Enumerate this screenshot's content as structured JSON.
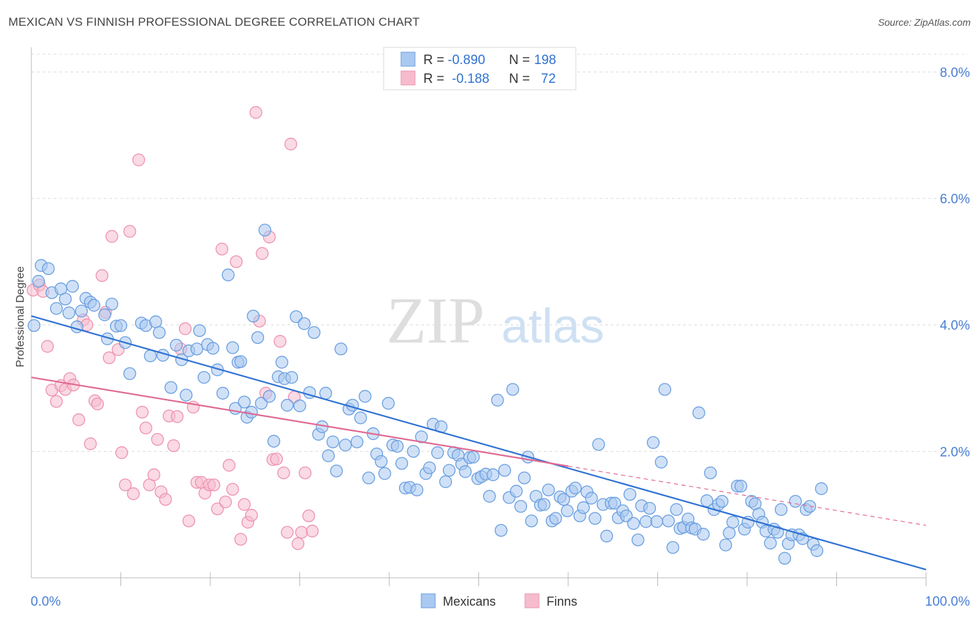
{
  "title": "MEXICAN VS FINNISH PROFESSIONAL DEGREE CORRELATION CHART",
  "source": "Source: ZipAtlas.com",
  "watermark": {
    "zip": "ZIP",
    "atlas": "atlas"
  },
  "colors": {
    "blue_fill": "#aac9f1",
    "blue_stroke": "#6a9fe0",
    "blue_line": "#2f72d2",
    "pink_fill": "#f6bccd",
    "pink_stroke": "#ee93b0",
    "pink_line": "#e06a93",
    "axis_text": "#4a7fd4",
    "grid": "#dcdcdc"
  },
  "legend": {
    "rows": [
      {
        "r_label": "R =",
        "r_value": "-0.890",
        "n_label": "N =",
        "n_value": "198"
      },
      {
        "r_label": "R =",
        "r_value": "-0.188",
        "n_label": "N =",
        "n_value": "72"
      }
    ]
  },
  "chart_data": {
    "type": "scatter",
    "title": "MEXICAN VS FINNISH PROFESSIONAL DEGREE CORRELATION CHART",
    "xlabel": "",
    "ylabel": "Professional Degree",
    "xlim": [
      0,
      100
    ],
    "ylim": [
      0,
      8.5
    ],
    "x_tick_labels": [
      "0.0%",
      "100.0%"
    ],
    "y_ticks": [
      2,
      4,
      6,
      8
    ],
    "y_tick_labels": [
      "2.0%",
      "4.0%",
      "6.0%",
      "8.0%"
    ],
    "legend_position": "bottom-center",
    "series": [
      {
        "name": "Mexicans",
        "R": -0.89,
        "N": 198,
        "trend": {
          "x": [
            0,
            100
          ],
          "y": [
            4.14,
            0.13
          ]
        },
        "points": [
          [
            0.3,
            3.99
          ],
          [
            0.8,
            4.69
          ],
          [
            1.1,
            4.94
          ],
          [
            1.9,
            4.89
          ],
          [
            2.3,
            4.51
          ],
          [
            2.8,
            4.26
          ],
          [
            3.3,
            4.57
          ],
          [
            3.8,
            4.41
          ],
          [
            4.2,
            4.19
          ],
          [
            4.6,
            4.61
          ],
          [
            5.1,
            3.97
          ],
          [
            5.6,
            4.22
          ],
          [
            6.1,
            4.42
          ],
          [
            6.6,
            4.36
          ],
          [
            7.0,
            4.31
          ],
          [
            8.2,
            4.16
          ],
          [
            8.5,
            3.78
          ],
          [
            9.0,
            4.33
          ],
          [
            9.5,
            3.98
          ],
          [
            10.0,
            3.99
          ],
          [
            10.5,
            3.72
          ],
          [
            11.0,
            3.23
          ],
          [
            12.3,
            4.03
          ],
          [
            12.8,
            3.99
          ],
          [
            13.3,
            3.51
          ],
          [
            13.9,
            4.05
          ],
          [
            14.3,
            3.88
          ],
          [
            14.7,
            3.52
          ],
          [
            15.6,
            3.01
          ],
          [
            16.2,
            3.68
          ],
          [
            16.8,
            3.45
          ],
          [
            17.3,
            2.89
          ],
          [
            17.6,
            3.59
          ],
          [
            18.5,
            3.62
          ],
          [
            18.8,
            3.91
          ],
          [
            19.3,
            3.17
          ],
          [
            19.7,
            3.69
          ],
          [
            20.3,
            3.63
          ],
          [
            20.8,
            3.29
          ],
          [
            21.4,
            2.92
          ],
          [
            22.0,
            4.79
          ],
          [
            22.5,
            3.64
          ],
          [
            22.8,
            2.68
          ],
          [
            23.1,
            3.41
          ],
          [
            23.4,
            3.42
          ],
          [
            23.8,
            2.78
          ],
          [
            24.1,
            2.54
          ],
          [
            24.6,
            2.62
          ],
          [
            24.8,
            4.14
          ],
          [
            25.3,
            3.8
          ],
          [
            25.7,
            2.76
          ],
          [
            26.1,
            5.5
          ],
          [
            26.6,
            2.87
          ],
          [
            27.1,
            2.16
          ],
          [
            27.6,
            3.18
          ],
          [
            28.0,
            3.41
          ],
          [
            28.3,
            3.15
          ],
          [
            28.6,
            2.73
          ],
          [
            29.1,
            3.17
          ],
          [
            29.6,
            4.13
          ],
          [
            30.0,
            2.72
          ],
          [
            30.5,
            4.02
          ],
          [
            31.1,
            2.93
          ],
          [
            31.6,
            3.88
          ],
          [
            32.1,
            2.27
          ],
          [
            32.5,
            2.39
          ],
          [
            32.9,
            2.92
          ],
          [
            33.2,
            1.93
          ],
          [
            33.7,
            2.15
          ],
          [
            34.1,
            1.69
          ],
          [
            34.6,
            3.62
          ],
          [
            35.1,
            2.1
          ],
          [
            35.5,
            2.67
          ],
          [
            35.9,
            2.73
          ],
          [
            36.4,
            2.15
          ],
          [
            36.8,
            2.53
          ],
          [
            37.3,
            2.87
          ],
          [
            37.7,
            1.58
          ],
          [
            38.2,
            2.28
          ],
          [
            38.6,
            1.96
          ],
          [
            39.1,
            1.84
          ],
          [
            39.5,
            1.65
          ],
          [
            39.9,
            2.76
          ],
          [
            40.4,
            2.1
          ],
          [
            40.9,
            2.08
          ],
          [
            41.4,
            1.81
          ],
          [
            41.8,
            1.42
          ],
          [
            42.3,
            1.43
          ],
          [
            42.7,
            2.0
          ],
          [
            43.1,
            1.39
          ],
          [
            43.6,
            2.23
          ],
          [
            44.1,
            1.65
          ],
          [
            44.5,
            1.74
          ],
          [
            44.9,
            2.43
          ],
          [
            45.4,
            1.98
          ],
          [
            45.8,
            2.39
          ],
          [
            46.3,
            1.52
          ],
          [
            46.7,
            1.7
          ],
          [
            47.2,
            1.98
          ],
          [
            47.7,
            1.94
          ],
          [
            48.1,
            1.8
          ],
          [
            48.5,
            1.68
          ],
          [
            49.0,
            1.9
          ],
          [
            49.4,
            1.91
          ],
          [
            49.9,
            1.57
          ],
          [
            50.3,
            1.6
          ],
          [
            50.8,
            1.64
          ],
          [
            51.2,
            1.29
          ],
          [
            51.6,
            1.63
          ],
          [
            52.1,
            2.81
          ],
          [
            52.5,
            0.75
          ],
          [
            52.9,
            1.7
          ],
          [
            53.4,
            1.27
          ],
          [
            53.8,
            2.98
          ],
          [
            54.2,
            1.37
          ],
          [
            54.7,
            1.13
          ],
          [
            55.1,
            1.58
          ],
          [
            55.5,
            1.91
          ],
          [
            55.9,
            0.9
          ],
          [
            56.4,
            1.29
          ],
          [
            56.9,
            1.15
          ],
          [
            57.3,
            1.16
          ],
          [
            57.8,
            1.39
          ],
          [
            58.2,
            0.9
          ],
          [
            58.6,
            0.94
          ],
          [
            59.1,
            1.28
          ],
          [
            59.5,
            1.24
          ],
          [
            59.9,
            1.06
          ],
          [
            60.4,
            1.37
          ],
          [
            60.8,
            1.42
          ],
          [
            61.3,
            0.98
          ],
          [
            61.7,
            1.11
          ],
          [
            62.1,
            1.36
          ],
          [
            62.6,
            1.26
          ],
          [
            63.0,
            0.94
          ],
          [
            63.4,
            2.11
          ],
          [
            63.9,
            1.16
          ],
          [
            64.3,
            0.66
          ],
          [
            64.8,
            1.18
          ],
          [
            65.2,
            1.18
          ],
          [
            65.6,
            0.95
          ],
          [
            66.1,
            1.06
          ],
          [
            66.5,
            0.98
          ],
          [
            66.9,
            1.32
          ],
          [
            67.3,
            0.86
          ],
          [
            67.8,
            0.6
          ],
          [
            68.2,
            1.14
          ],
          [
            68.7,
            0.89
          ],
          [
            69.1,
            1.1
          ],
          [
            69.5,
            2.14
          ],
          [
            69.9,
            0.89
          ],
          [
            70.4,
            1.83
          ],
          [
            70.8,
            2.98
          ],
          [
            71.2,
            0.9
          ],
          [
            71.7,
            0.48
          ],
          [
            72.1,
            1.08
          ],
          [
            72.5,
            0.78
          ],
          [
            72.9,
            0.8
          ],
          [
            73.4,
            0.93
          ],
          [
            73.8,
            0.79
          ],
          [
            74.2,
            0.77
          ],
          [
            74.6,
            2.61
          ],
          [
            75.1,
            0.69
          ],
          [
            75.5,
            1.22
          ],
          [
            75.9,
            1.66
          ],
          [
            76.3,
            1.08
          ],
          [
            76.8,
            1.16
          ],
          [
            77.2,
            1.21
          ],
          [
            77.6,
            0.52
          ],
          [
            78.0,
            0.71
          ],
          [
            78.4,
            0.88
          ],
          [
            78.9,
            1.45
          ],
          [
            79.3,
            1.45
          ],
          [
            79.7,
            0.77
          ],
          [
            80.1,
            0.88
          ],
          [
            80.5,
            1.21
          ],
          [
            80.9,
            1.17
          ],
          [
            81.3,
            1.01
          ],
          [
            81.7,
            0.88
          ],
          [
            82.1,
            0.74
          ],
          [
            82.6,
            0.55
          ],
          [
            83.0,
            0.77
          ],
          [
            83.4,
            0.72
          ],
          [
            83.8,
            1.08
          ],
          [
            84.2,
            0.31
          ],
          [
            84.6,
            0.54
          ],
          [
            85.0,
            0.68
          ],
          [
            85.4,
            1.21
          ],
          [
            85.8,
            0.68
          ],
          [
            86.2,
            0.62
          ],
          [
            86.6,
            1.08
          ],
          [
            87.0,
            1.13
          ],
          [
            87.4,
            0.53
          ],
          [
            87.8,
            0.43
          ],
          [
            88.3,
            1.41
          ]
        ]
      },
      {
        "name": "Finns",
        "R": -0.188,
        "N": 72,
        "trend": {
          "x": [
            0,
            100
          ],
          "y": [
            3.17,
            0.83
          ]
        },
        "points": [
          [
            0.2,
            4.55
          ],
          [
            0.9,
            4.63
          ],
          [
            1.3,
            4.53
          ],
          [
            1.8,
            3.66
          ],
          [
            2.3,
            2.97
          ],
          [
            2.8,
            2.79
          ],
          [
            3.3,
            3.04
          ],
          [
            3.8,
            2.98
          ],
          [
            4.3,
            3.15
          ],
          [
            4.7,
            3.05
          ],
          [
            5.3,
            2.5
          ],
          [
            5.8,
            4.08
          ],
          [
            6.2,
            4.0
          ],
          [
            6.6,
            2.12
          ],
          [
            7.1,
            2.8
          ],
          [
            7.4,
            2.75
          ],
          [
            7.9,
            4.78
          ],
          [
            8.3,
            4.2
          ],
          [
            8.7,
            3.48
          ],
          [
            9.0,
            5.4
          ],
          [
            9.7,
            3.61
          ],
          [
            10.1,
            1.98
          ],
          [
            10.5,
            1.47
          ],
          [
            11.0,
            5.48
          ],
          [
            11.4,
            1.33
          ],
          [
            12.0,
            6.61
          ],
          [
            12.4,
            2.62
          ],
          [
            12.8,
            2.37
          ],
          [
            13.2,
            1.47
          ],
          [
            13.7,
            1.63
          ],
          [
            14.1,
            2.19
          ],
          [
            14.5,
            1.36
          ],
          [
            15.0,
            1.24
          ],
          [
            15.4,
            2.56
          ],
          [
            15.9,
            2.09
          ],
          [
            16.3,
            2.55
          ],
          [
            16.7,
            3.62
          ],
          [
            17.2,
            3.94
          ],
          [
            17.6,
            0.9
          ],
          [
            18.1,
            2.7
          ],
          [
            18.5,
            1.51
          ],
          [
            19.0,
            1.51
          ],
          [
            19.4,
            1.34
          ],
          [
            19.9,
            1.47
          ],
          [
            20.4,
            1.47
          ],
          [
            20.8,
            1.09
          ],
          [
            21.3,
            5.2
          ],
          [
            21.7,
            1.2
          ],
          [
            22.1,
            1.78
          ],
          [
            22.5,
            1.4
          ],
          [
            22.9,
            5.0
          ],
          [
            23.4,
            0.61
          ],
          [
            23.8,
            1.16
          ],
          [
            24.2,
            0.88
          ],
          [
            24.6,
            0.99
          ],
          [
            25.1,
            7.36
          ],
          [
            25.5,
            4.06
          ],
          [
            25.8,
            5.13
          ],
          [
            26.2,
            2.92
          ],
          [
            26.6,
            5.39
          ],
          [
            27.0,
            1.87
          ],
          [
            27.4,
            1.88
          ],
          [
            27.8,
            3.74
          ],
          [
            28.2,
            1.66
          ],
          [
            28.6,
            0.72
          ],
          [
            29.0,
            6.86
          ],
          [
            29.4,
            2.86
          ],
          [
            29.8,
            0.54
          ],
          [
            30.2,
            0.72
          ],
          [
            30.6,
            1.66
          ],
          [
            31.0,
            0.98
          ],
          [
            31.4,
            0.74
          ]
        ]
      }
    ]
  }
}
